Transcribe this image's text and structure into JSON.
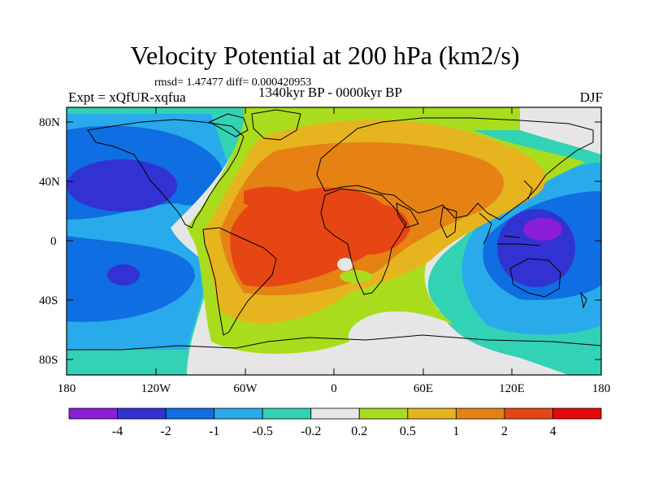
{
  "title": "Velocity Potential at 200 hPa (km2/s)",
  "stats_line": "rmsd= 1.47477 diff= 0.000420953",
  "left_label": "Expt = xQfUR-xqfua",
  "center_label": "1340kyr BP - 0000kyr BP",
  "right_label": "DJF",
  "map": {
    "projection": "cylindrical equidistant",
    "lat_ticks": [
      "80N",
      "40N",
      "0",
      "40S",
      "80S"
    ],
    "lon_ticks": [
      "180",
      "120W",
      "60W",
      "0",
      "60E",
      "120E",
      "180"
    ],
    "field_summary": [
      {
        "region": "North Pacific",
        "level": "-2 to -4"
      },
      {
        "region": "Maritime Continent / West Pacific",
        "level": "below -4"
      },
      {
        "region": "South Pacific",
        "level": "-2 to -4"
      },
      {
        "region": "South America / Atlantic / Africa",
        "level": "2 to 4"
      },
      {
        "region": "Eurasia",
        "level": "1 to 2"
      },
      {
        "region": "Arctic",
        "level": "0.2 to 0.5"
      },
      {
        "region": "Southern Ocean",
        "level": "-0.2 to 0.2"
      }
    ]
  },
  "colorbar": {
    "labels": [
      "-4",
      "-2",
      "-1",
      "-0.5",
      "-0.2",
      "0.2",
      "0.5",
      "1",
      "2",
      "4"
    ],
    "colors": [
      "#8c1ed7",
      "#3232d2",
      "#0f6ee1",
      "#28aaeb",
      "#32d2b4",
      "#e6e6e6",
      "#aadc1e",
      "#e6b41e",
      "#e68214",
      "#e64614",
      "#e60a0a"
    ]
  }
}
